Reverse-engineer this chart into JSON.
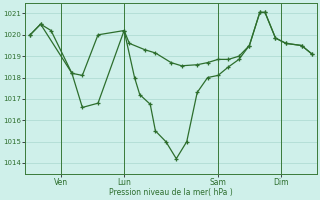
{
  "background_color": "#cff0ea",
  "grid_color": "#aad8d0",
  "line_color": "#2d6e2d",
  "day_line_color": "#3a7a3a",
  "xlabel": "Pression niveau de la mer( hPa )",
  "xlabel_color": "#2d6e2d",
  "tick_color": "#2d6e2d",
  "ylim": [
    1013.5,
    1021.5
  ],
  "yticks": [
    1014,
    1015,
    1016,
    1017,
    1018,
    1019,
    1020,
    1021
  ],
  "xlim": [
    0,
    28
  ],
  "day_positions": [
    3.5,
    9.5,
    18.5,
    24.5
  ],
  "day_labels": [
    "Ven",
    "Lun",
    "Sam",
    "Dim"
  ],
  "s1_x": [
    0.5,
    1.5,
    2.5,
    4.5,
    5.5,
    7.0,
    9.5,
    10.0,
    11.5,
    12.5,
    14.0,
    15.0,
    16.5,
    17.5,
    18.5,
    19.5,
    20.5,
    21.5,
    22.5,
    23.0,
    24.0,
    25.0,
    26.5,
    27.5
  ],
  "s1_y": [
    1020.0,
    1020.5,
    1020.2,
    1018.2,
    1018.1,
    1020.0,
    1020.2,
    1019.6,
    1019.3,
    1019.15,
    1018.7,
    1018.55,
    1018.6,
    1018.7,
    1018.85,
    1018.85,
    1019.0,
    1019.5,
    1021.05,
    1021.05,
    1019.85,
    1019.6,
    1019.5,
    1019.1
  ],
  "s2_x": [
    0.5,
    1.5,
    4.5,
    5.5,
    7.0,
    9.5,
    10.5,
    11.0,
    12.0,
    12.5,
    13.5,
    14.5,
    15.5,
    16.5,
    17.5,
    18.5,
    19.5,
    20.5,
    21.5,
    22.5,
    23.0,
    24.0,
    25.0,
    26.5,
    27.5
  ],
  "s2_y": [
    1020.0,
    1020.5,
    1018.2,
    1016.6,
    1016.8,
    1020.2,
    1018.0,
    1017.2,
    1016.75,
    1015.5,
    1015.0,
    1014.2,
    1015.0,
    1017.3,
    1018.0,
    1018.1,
    1018.5,
    1018.85,
    1019.5,
    1021.05,
    1021.05,
    1019.85,
    1019.6,
    1019.5,
    1019.1
  ]
}
